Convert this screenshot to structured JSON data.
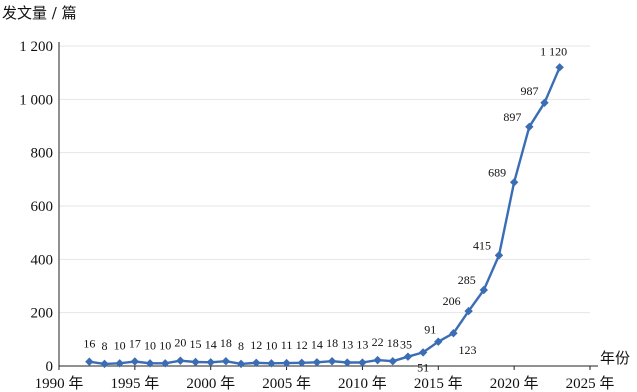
{
  "chart_data": {
    "type": "line",
    "ylabel": "发文量 / 篇",
    "xlabel": "年份",
    "grid": true,
    "ylim": [
      0,
      1200
    ],
    "xlim": [
      1990,
      2025
    ],
    "y_ticks": [
      0,
      200,
      400,
      600,
      800,
      1000,
      1200
    ],
    "y_tick_labels": [
      "0",
      "200",
      "400",
      "600",
      "800",
      "1 000",
      "1 200"
    ],
    "x_ticks": [
      1990,
      1995,
      2000,
      2005,
      2010,
      2015,
      2020,
      2025
    ],
    "x_tick_labels": [
      "1990 年",
      "1995 年",
      "2000 年",
      "2005 年",
      "2010 年",
      "2015 年",
      "2020 年",
      "2025 年"
    ],
    "series": [
      {
        "color": "#3b6db5",
        "x": [
          1992,
          1993,
          1994,
          1995,
          1996,
          1997,
          1998,
          1999,
          2000,
          2001,
          2002,
          2003,
          2004,
          2005,
          2006,
          2007,
          2008,
          2009,
          2010,
          2011,
          2012,
          2013,
          2014,
          2015,
          2016,
          2017,
          2018,
          2019,
          2020,
          2021,
          2022,
          2023
        ],
        "values": [
          16,
          8,
          10,
          17,
          10,
          10,
          20,
          15,
          14,
          18,
          8,
          12,
          10,
          11,
          12,
          14,
          18,
          13,
          13,
          22,
          18,
          35,
          51,
          91,
          123,
          206,
          285,
          415,
          689,
          897,
          987,
          1120
        ],
        "labels": [
          "16",
          "8",
          "10",
          "17",
          "10",
          "10",
          "20",
          "15",
          "14",
          "18",
          "8",
          "12",
          "10",
          "11",
          "12",
          "14",
          "18",
          "13",
          "13",
          "22",
          "18",
          "35",
          "51",
          "91",
          "123",
          "206",
          "285",
          "415",
          "689",
          "897",
          "987",
          "1 120"
        ]
      }
    ]
  }
}
